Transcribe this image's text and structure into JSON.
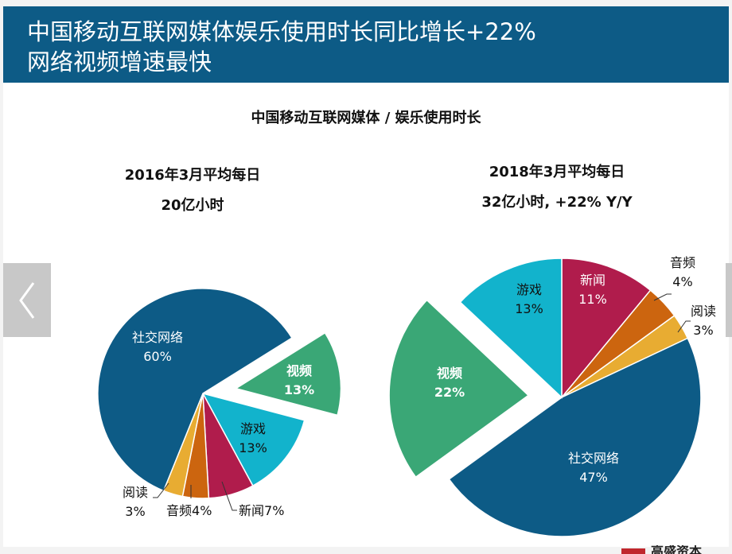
{
  "header": {
    "title_line1": "中国移动互联网媒体娱乐使用时长同比增长+22%",
    "title_line2": "网络视频增速最快"
  },
  "colors": {
    "header_bg": "#0d5b86",
    "social": "#0d5b86",
    "video": "#3aa776",
    "games": "#12b3cc",
    "news": "#b01c4c",
    "audio": "#cc650f",
    "reading": "#e8ac32"
  },
  "nav": {
    "prev_icon": "chevron-left-icon"
  },
  "footer": {
    "logo_text": "高盛资本"
  },
  "chart_data": {
    "title": "中国移动互联网媒体 / 娱乐使用时长",
    "charts": [
      {
        "type": "pie",
        "heading_line1": "2016年3月平均每日",
        "heading_line2": "20亿小时",
        "slices": [
          {
            "label": "社交网络",
            "value": 60,
            "value_label": "60%"
          },
          {
            "label": "视频",
            "value": 13,
            "value_label": "13%",
            "exploded": true
          },
          {
            "label": "游戏",
            "value": 13,
            "value_label": "13%"
          },
          {
            "label": "新闻",
            "value": 7,
            "value_label": "7%"
          },
          {
            "label": "音频",
            "value": 4,
            "value_label": "4%"
          },
          {
            "label": "阅读",
            "value": 3,
            "value_label": "3%"
          }
        ]
      },
      {
        "type": "pie",
        "heading_line1": "2018年3月平均每日",
        "heading_line2": "32亿小时, +22% Y/Y",
        "slices": [
          {
            "label": "社交网络",
            "value": 47,
            "value_label": "47%"
          },
          {
            "label": "视频",
            "value": 22,
            "value_label": "22%",
            "exploded": true
          },
          {
            "label": "游戏",
            "value": 13,
            "value_label": "13%"
          },
          {
            "label": "新闻",
            "value": 11,
            "value_label": "11%"
          },
          {
            "label": "音频",
            "value": 4,
            "value_label": "4%"
          },
          {
            "label": "阅读",
            "value": 3,
            "value_label": "3%"
          }
        ]
      }
    ]
  }
}
